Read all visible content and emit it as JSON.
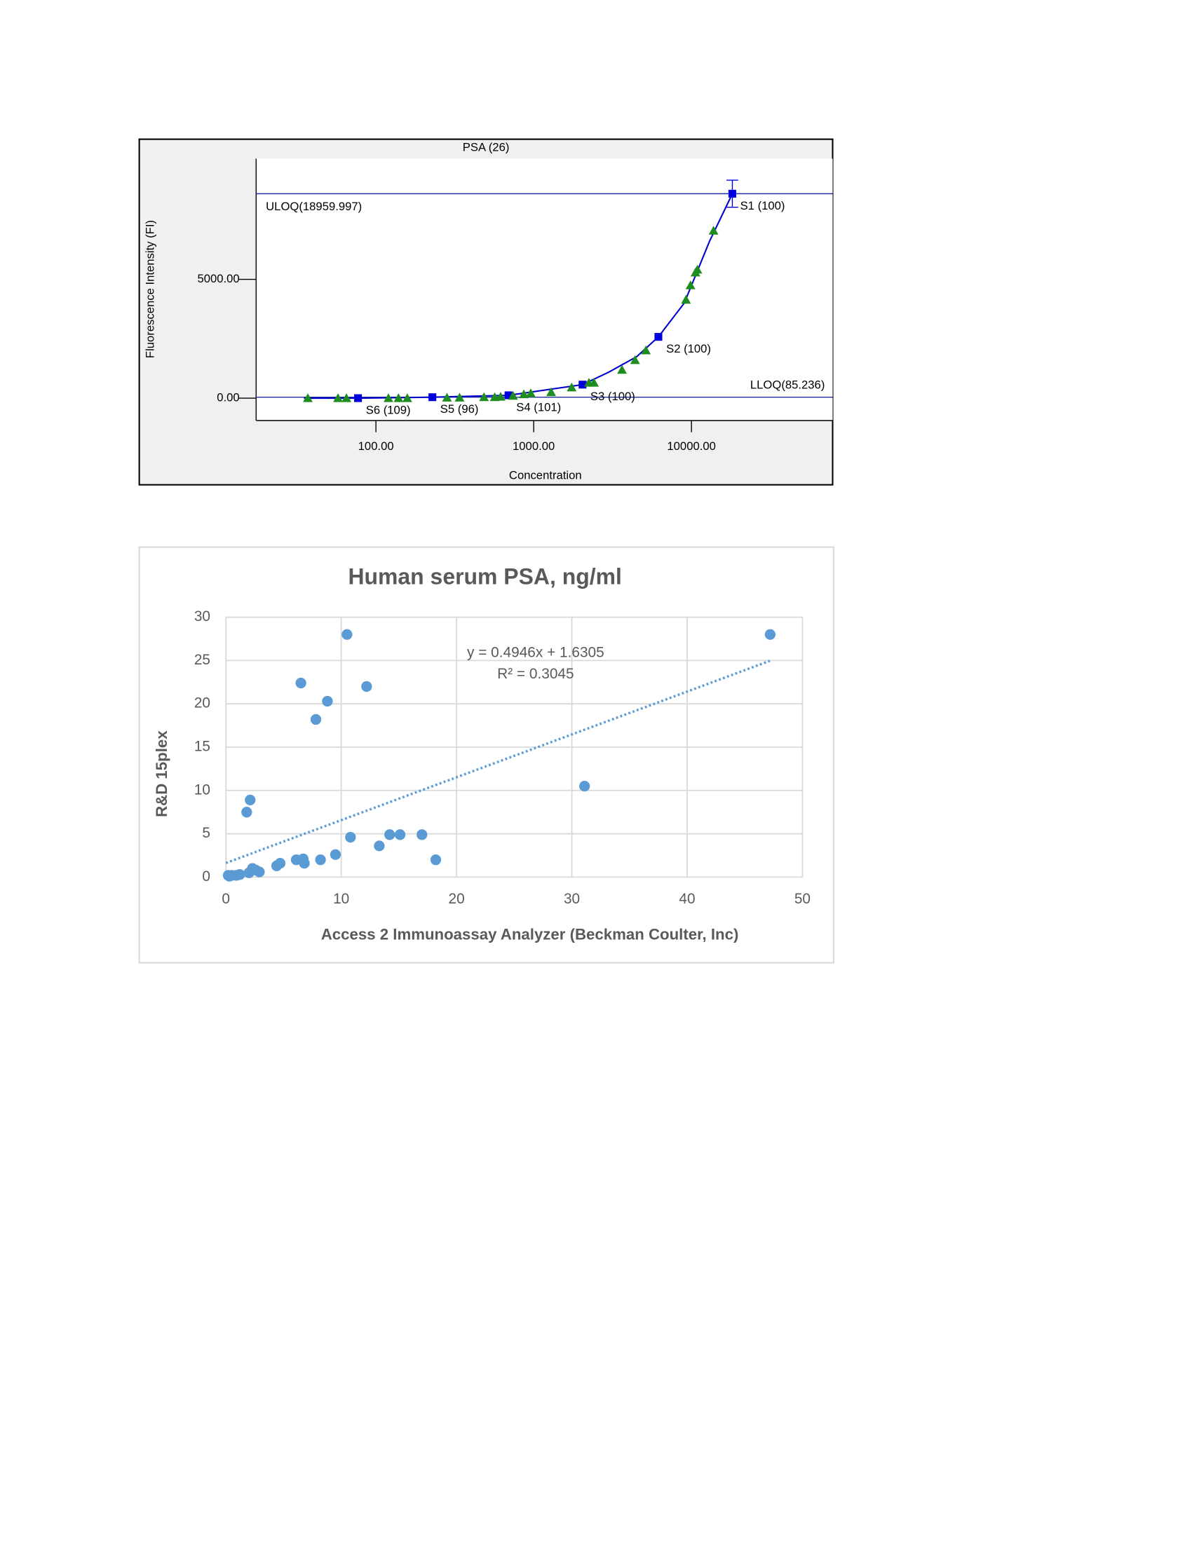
{
  "chart_data": [
    {
      "type": "line",
      "title": "PSA (26)",
      "x_label": "Concentration",
      "y_label": "Fluorescence Intensity (FI)",
      "xscale": "log",
      "xlim": [
        17.4,
        78500
      ],
      "xticks": [
        {
          "value": 100,
          "label": "100.00"
        },
        {
          "value": 1000,
          "label": "1000.00"
        },
        {
          "value": 10000,
          "label": "10000.00"
        }
      ],
      "ylim": [
        -943,
        10082
      ],
      "yticks": [
        {
          "value": 0,
          "label": "0.00"
        },
        {
          "value": 5000,
          "label": "5000.00"
        }
      ],
      "reference_lines": [
        {
          "label": "ULOQ(18959.997)",
          "value": 8607,
          "color": "#1f2f9f"
        },
        {
          "label": "LLOQ(85.236)",
          "value": 40,
          "color": "#1f2f9f"
        }
      ],
      "curve": {
        "color": "#0000cc",
        "x": [
          35,
          77,
          228,
          692,
          2040,
          3000,
          4500,
          6170,
          9000,
          13000,
          18160
        ],
        "values": [
          0,
          0,
          40,
          120,
          570,
          1100,
          1750,
          2580,
          4000,
          6600,
          8607
        ]
      },
      "series": [
        {
          "marker": "square",
          "color": "#0000dd",
          "x": [
            77,
            228,
            692,
            2040,
            6170,
            18160
          ],
          "values": [
            0,
            40,
            120,
            570,
            2580,
            8607
          ],
          "point_labels": [
            "S6 (109)",
            "S5 (96)",
            "S4 (101)",
            "S3 (100)",
            "S2 (100)",
            "S1 (100)"
          ],
          "errors": [
            null,
            null,
            null,
            null,
            null,
            570
          ]
        },
        {
          "marker": "triangle",
          "color": "#1e8c1e",
          "x": [
            37,
            57.5,
            65,
            120,
            139,
            158,
            282,
            339,
            484,
            566,
            617,
            740,
            866,
            958,
            1290,
            1740,
            2240,
            2410,
            3630,
            4390,
            5140,
            9230,
            9860,
            10600,
            10900,
            13800
          ],
          "values": [
            0,
            0,
            0,
            0,
            0,
            0,
            20,
            20,
            40,
            40,
            60,
            100,
            160,
            205,
            250,
            450,
            650,
            650,
            1190,
            1600,
            2010,
            4140,
            4750,
            5290,
            5410,
            7050
          ]
        }
      ]
    },
    {
      "type": "scatter",
      "title": "Human serum PSA, ng/ml",
      "x_label": "Access 2 Immunoassay Analyzer (Beckman Coulter, Inc)",
      "y_label": "R&D 15plex",
      "xlim": [
        0,
        50
      ],
      "xticks": [
        0,
        10,
        20,
        30,
        40,
        50
      ],
      "ylim": [
        0,
        30
      ],
      "yticks": [
        0,
        5,
        10,
        15,
        20,
        25,
        30
      ],
      "grid": true,
      "color": "#5b9bd5",
      "x": [
        47.2,
        10.5,
        6.5,
        12.2,
        8.8,
        7.8,
        31.1,
        2.1,
        1.8,
        10.8,
        14.2,
        15.1,
        17.0,
        13.3,
        9.5,
        18.2,
        8.2,
        6.1,
        6.7,
        6.8,
        4.7,
        4.4,
        2.6,
        2.3,
        2.9,
        2.0,
        1.2,
        0.9,
        0.5,
        0.3,
        0.2
      ],
      "values": [
        28,
        28,
        22.4,
        22,
        20.3,
        18.2,
        10.5,
        8.9,
        7.5,
        4.6,
        4.9,
        4.9,
        4.9,
        3.6,
        2.6,
        2.0,
        2.0,
        2.0,
        2.1,
        1.6,
        1.6,
        1.3,
        0.8,
        1.0,
        0.6,
        0.5,
        0.3,
        0.2,
        0.2,
        0.1,
        0.2
      ],
      "trendline": {
        "slope": 0.4946,
        "intercept": 1.6305,
        "xrange": [
          0,
          47.2
        ]
      },
      "annotations": [
        "y = 0.4946x + 1.6305",
        "R² = 0.3045"
      ]
    }
  ]
}
